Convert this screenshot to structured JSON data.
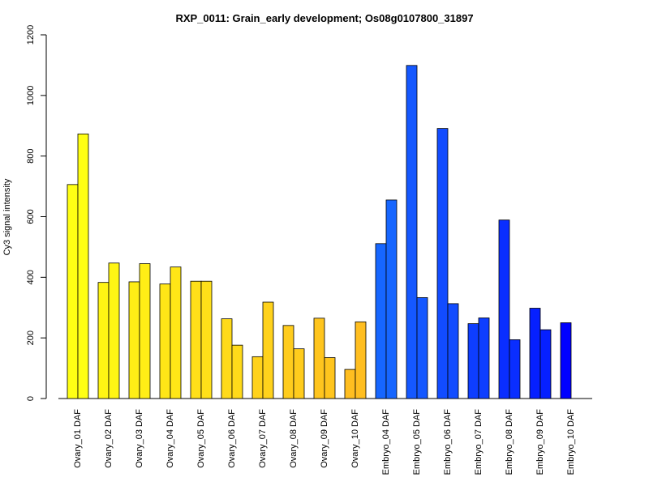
{
  "chart_data": {
    "type": "bar",
    "title": "RXP_0011: Grain_early development; Os08g0107800_31897",
    "xlabel": "",
    "ylabel": "Cy3 signal intensity",
    "ylim": [
      0,
      1200
    ],
    "yticks": [
      0,
      200,
      400,
      600,
      800,
      1000,
      1200
    ],
    "categories": [
      "Ovary_01 DAF",
      "Ovary_02 DAF",
      "Ovary_03 DAF",
      "Ovary_04 DAF",
      "Ovary_05 DAF",
      "Ovary_06 DAF",
      "Ovary_07 DAF",
      "Ovary_08 DAF",
      "Ovary_09 DAF",
      "Ovary_10 DAF",
      "Embryo_04 DAF",
      "Embryo_05 DAF",
      "Embryo_06 DAF",
      "Embryo_07 DAF",
      "Embryo_08 DAF",
      "Embryo_09 DAF",
      "Embryo_10 DAF"
    ],
    "series": [
      {
        "values": [
          706,
          383,
          385,
          378,
          387,
          263,
          138,
          241,
          265,
          96,
          511,
          1099,
          891,
          247,
          589,
          298,
          250
        ]
      },
      {
        "values": [
          873,
          447,
          445,
          434,
          387,
          176,
          318,
          164,
          135,
          253,
          655,
          333,
          313,
          266,
          194,
          227,
          0
        ]
      }
    ],
    "group_colors": [
      "#FFFF14",
      "#FFF514",
      "#FFEE16",
      "#FFE617",
      "#FFE019",
      "#FFDA1A",
      "#FFD21C",
      "#FFCC1D",
      "#FFC51E",
      "#FFBE20",
      "#1666FF",
      "#1558FF",
      "#124CFF",
      "#0E3EFF",
      "#0A2EFF",
      "#0620FF",
      "#0000FF"
    ],
    "grid": false,
    "legend": "none"
  }
}
